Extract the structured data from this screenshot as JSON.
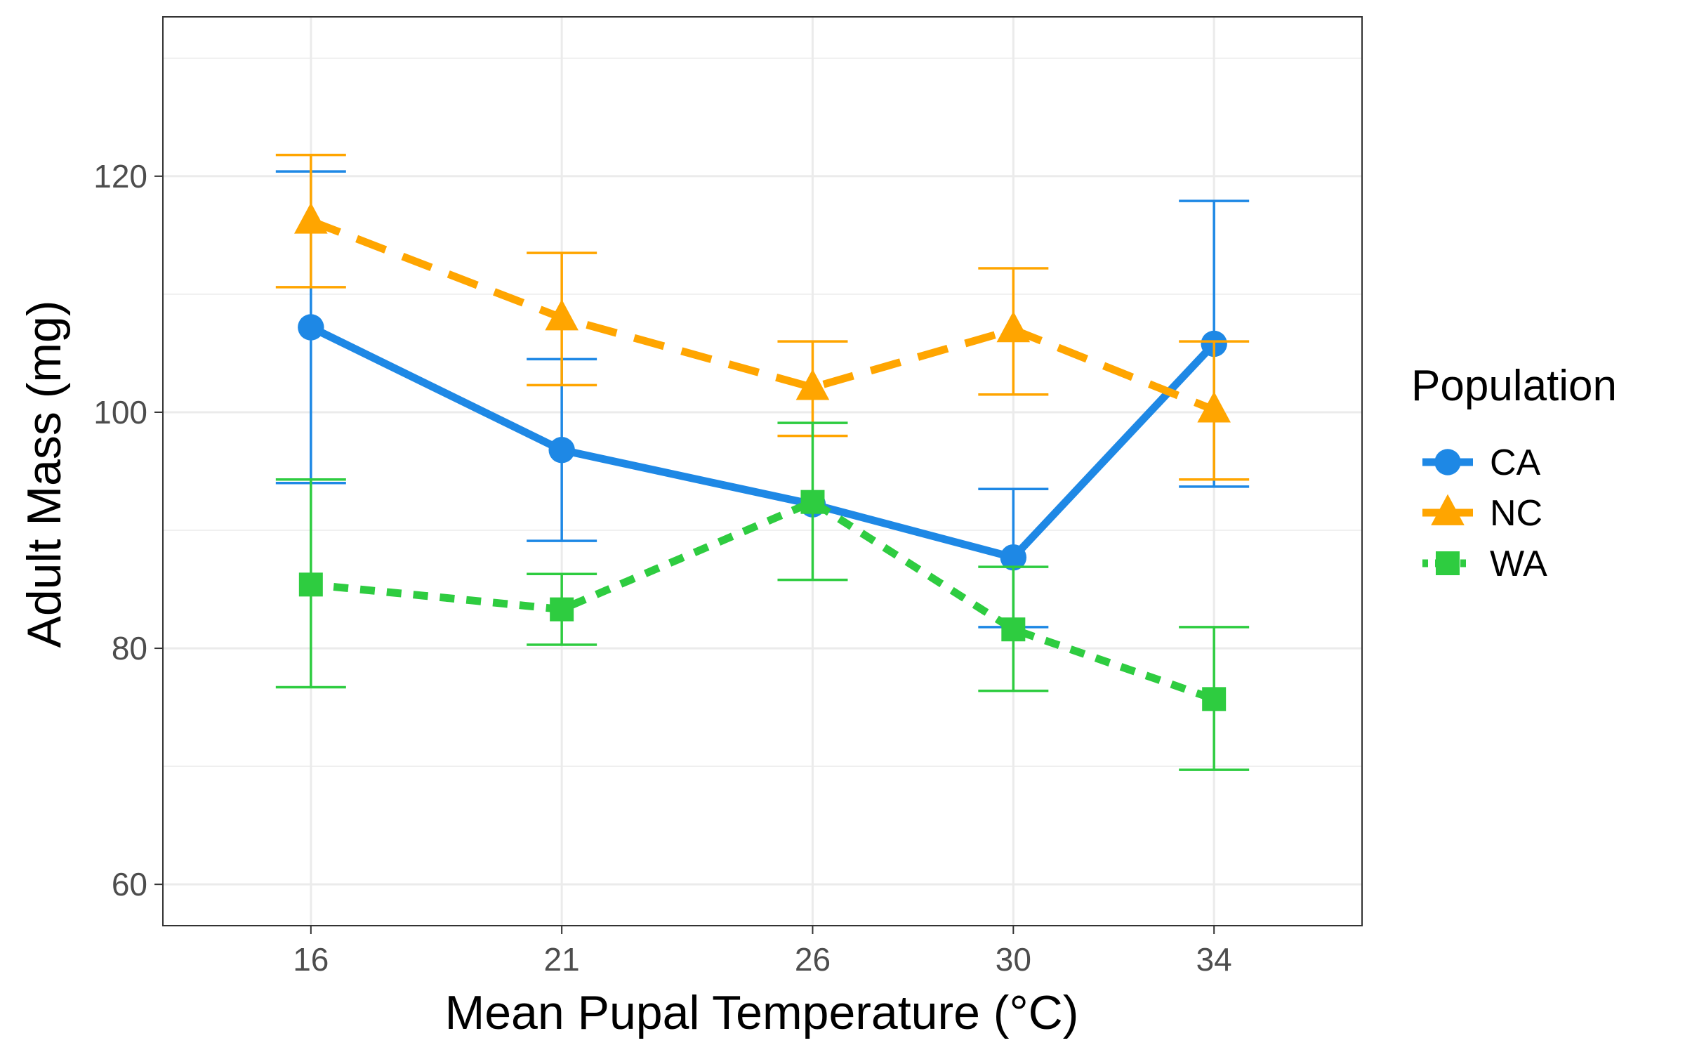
{
  "chart_data": {
    "type": "line",
    "title": "",
    "xlabel": "Mean Pupal Temperature (°C)",
    "ylabel": "Adult Mass (mg)",
    "x": [
      16,
      21,
      26,
      30,
      34
    ],
    "x_tick_labels": [
      "16",
      "21",
      "26",
      "30",
      "34"
    ],
    "xlim": [
      13.05,
      36.95
    ],
    "ylim": [
      56.5,
      133.5
    ],
    "y_ticks": [
      60,
      80,
      100,
      120
    ],
    "y_tick_labels": [
      "60",
      "80",
      "100",
      "120"
    ],
    "grid": true,
    "legend": {
      "title": "Population",
      "position": "right"
    },
    "series": [
      {
        "name": "CA",
        "color": "#1E88E5",
        "linestyle": "solid",
        "marker": "circle",
        "values": [
          107.2,
          96.8,
          92.2,
          87.7,
          105.8
        ],
        "error_low": [
          94.0,
          89.1,
          null,
          81.8,
          93.7
        ],
        "error_high": [
          120.4,
          104.5,
          null,
          93.5,
          117.9
        ]
      },
      {
        "name": "NC",
        "color": "#FFA500",
        "linestyle": "dashed",
        "marker": "triangle",
        "values": [
          116.2,
          108.0,
          102.1,
          107.0,
          100.2
        ],
        "error_low": [
          110.6,
          102.3,
          98.0,
          101.5,
          94.3
        ],
        "error_high": [
          121.8,
          113.5,
          106.0,
          112.2,
          106.0
        ]
      },
      {
        "name": "WA",
        "color": "#2ECC40",
        "linestyle": "dotted",
        "marker": "square",
        "values": [
          85.4,
          83.3,
          92.4,
          81.6,
          75.7
        ],
        "error_low": [
          76.7,
          80.3,
          85.8,
          76.4,
          69.7
        ],
        "error_high": [
          94.3,
          86.3,
          99.1,
          86.9,
          81.8
        ]
      }
    ]
  }
}
